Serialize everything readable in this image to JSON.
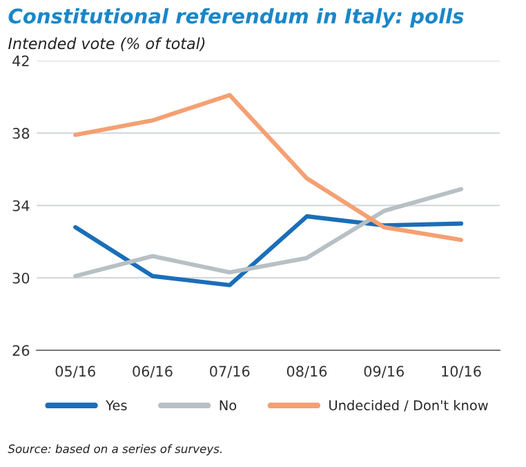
{
  "chart_data": {
    "type": "line",
    "title": "Constitutional referendum in Italy: polls",
    "subtitle": "Intended vote (% of total)",
    "categories": [
      "05/16",
      "06/16",
      "07/16",
      "08/16",
      "09/16",
      "10/16"
    ],
    "series": [
      {
        "name": "Yes",
        "color": "#1a6eb8",
        "values": [
          32.8,
          30.1,
          29.6,
          33.4,
          32.9,
          33.0
        ]
      },
      {
        "name": "No",
        "color": "#b7c0c4",
        "values": [
          30.1,
          31.2,
          30.3,
          31.1,
          33.7,
          34.9
        ]
      },
      {
        "name": "Undecided / Don't know",
        "color": "#f4a072",
        "values": [
          37.9,
          38.7,
          40.1,
          35.5,
          32.8,
          32.1
        ]
      }
    ],
    "ylim": [
      26,
      42
    ],
    "yticks": [
      26,
      30,
      34,
      38,
      42
    ],
    "grid": "y",
    "legend": "bottom",
    "marker": "none",
    "line_style": "solid",
    "annotations": [
      "Source: based on a series of surveys."
    ]
  }
}
